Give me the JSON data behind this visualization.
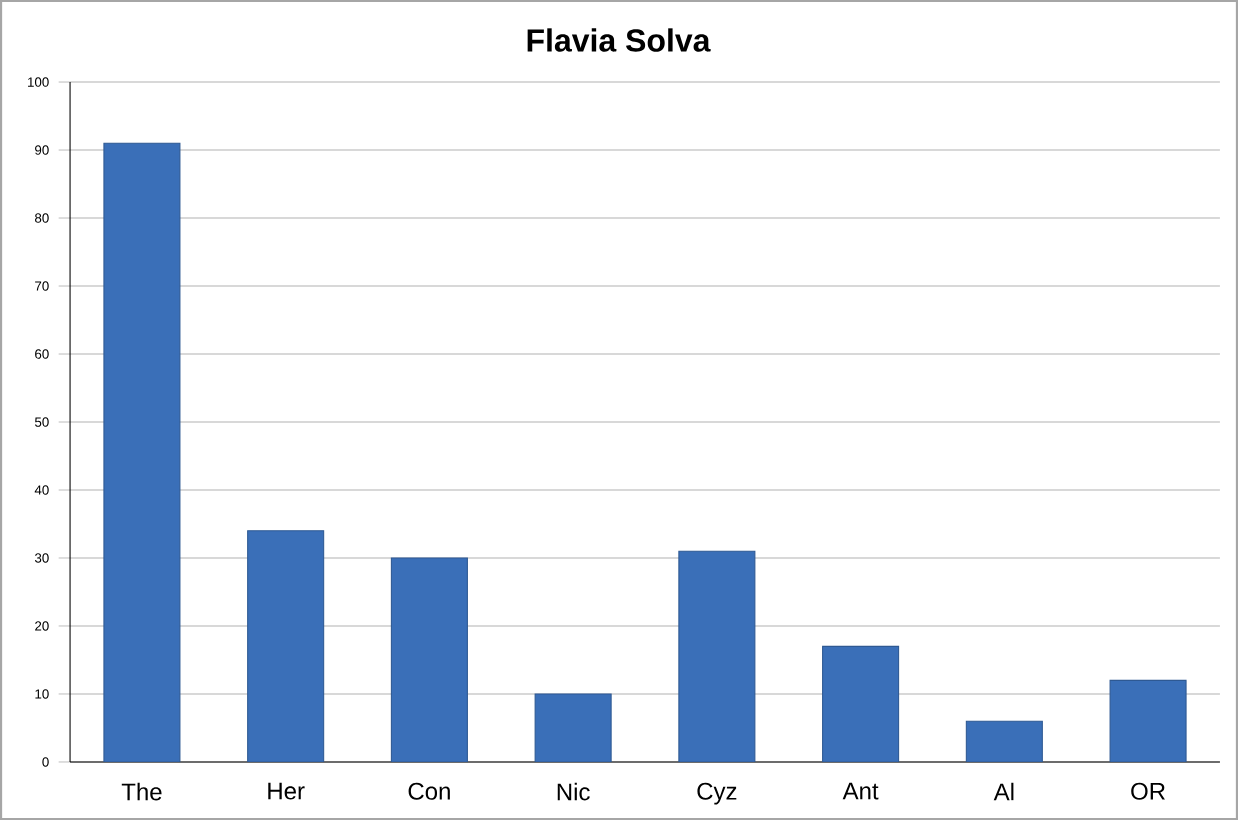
{
  "chart_data": {
    "type": "bar",
    "title": "Flavia Solva",
    "categories": [
      "The",
      "Her",
      "Con",
      "Nic",
      "Cyz",
      "Ant",
      "Al",
      "OR"
    ],
    "values": [
      91,
      34,
      30,
      10,
      31,
      17,
      6,
      12
    ],
    "color": "#3a6fb8",
    "ylim": [
      0,
      100
    ],
    "yticks": [
      0,
      10,
      20,
      30,
      40,
      50,
      60,
      70,
      80,
      90,
      100
    ],
    "grid": "y"
  }
}
